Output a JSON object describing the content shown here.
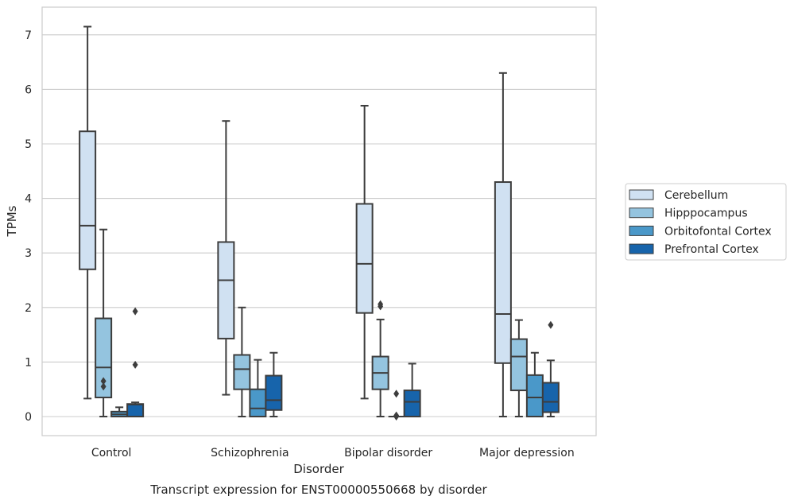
{
  "chart_data": {
    "type": "box",
    "caption": "Transcript expression for ENST00000550668 by disorder",
    "xlabel": "Disorder",
    "ylabel": "TPMs",
    "ylim": [
      -0.35,
      7.5
    ],
    "yticks": [
      0,
      1,
      2,
      3,
      4,
      5,
      6,
      7
    ],
    "grid": "horizontal",
    "legend_position": "right",
    "categories": [
      "Control",
      "Schizophrenia",
      "Bipolar disorder",
      "Major depression"
    ],
    "series": [
      {
        "name": "Cerebellum",
        "color": "#d0e1f2",
        "boxes": [
          {
            "whisker_low": 0.33,
            "q1": 2.7,
            "median": 3.5,
            "q3": 5.23,
            "whisker_high": 7.15,
            "outliers": []
          },
          {
            "whisker_low": 0.4,
            "q1": 1.43,
            "median": 2.5,
            "q3": 3.2,
            "whisker_high": 5.42,
            "outliers": []
          },
          {
            "whisker_low": 0.33,
            "q1": 1.9,
            "median": 2.8,
            "q3": 3.9,
            "whisker_high": 5.7,
            "outliers": []
          },
          {
            "whisker_low": 0.0,
            "q1": 0.98,
            "median": 1.88,
            "q3": 4.3,
            "whisker_high": 6.3,
            "outliers": []
          }
        ]
      },
      {
        "name": "Hipppocampus",
        "color": "#94c4df",
        "boxes": [
          {
            "whisker_low": 0.0,
            "q1": 0.35,
            "median": 0.9,
            "q3": 1.8,
            "whisker_high": 3.43,
            "outliers": [
              0.55,
              0.65
            ]
          },
          {
            "whisker_low": 0.0,
            "q1": 0.5,
            "median": 0.87,
            "q3": 1.13,
            "whisker_high": 2.0,
            "outliers": []
          },
          {
            "whisker_low": 0.0,
            "q1": 0.5,
            "median": 0.8,
            "q3": 1.1,
            "whisker_high": 1.78,
            "outliers": [
              2.02,
              2.06
            ]
          },
          {
            "whisker_low": 0.0,
            "q1": 0.48,
            "median": 1.1,
            "q3": 1.42,
            "whisker_high": 1.77,
            "outliers": []
          }
        ]
      },
      {
        "name": "Orbitofontal Cortex",
        "color": "#4a98c9",
        "boxes": [
          {
            "whisker_low": 0.0,
            "q1": 0.0,
            "median": 0.04,
            "q3": 0.09,
            "whisker_high": 0.17,
            "outliers": []
          },
          {
            "whisker_low": 0.0,
            "q1": 0.0,
            "median": 0.15,
            "q3": 0.5,
            "whisker_high": 1.04,
            "outliers": []
          },
          {
            "whisker_low": 0.0,
            "q1": 0.0,
            "median": 0.0,
            "q3": 0.0,
            "whisker_high": 0.0,
            "outliers": [
              0.0,
              0.02,
              0.42
            ]
          },
          {
            "whisker_low": 0.0,
            "q1": 0.0,
            "median": 0.35,
            "q3": 0.76,
            "whisker_high": 1.17,
            "outliers": []
          }
        ]
      },
      {
        "name": "Prefrontal Cortex",
        "color": "#1764ab",
        "boxes": [
          {
            "whisker_low": 0.0,
            "q1": 0.0,
            "median": 0.22,
            "q3": 0.23,
            "whisker_high": 0.26,
            "outliers": [
              0.95,
              1.93
            ]
          },
          {
            "whisker_low": 0.0,
            "q1": 0.12,
            "median": 0.3,
            "q3": 0.75,
            "whisker_high": 1.17,
            "outliers": []
          },
          {
            "whisker_low": 0.0,
            "q1": 0.0,
            "median": 0.27,
            "q3": 0.48,
            "whisker_high": 0.97,
            "outliers": []
          },
          {
            "whisker_low": 0.0,
            "q1": 0.08,
            "median": 0.27,
            "q3": 0.62,
            "whisker_high": 1.03,
            "outliers": [
              1.68
            ]
          }
        ]
      }
    ]
  }
}
